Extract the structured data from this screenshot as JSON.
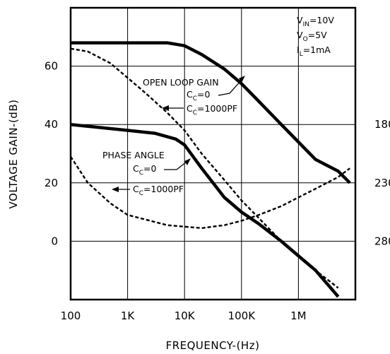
{
  "chart_data": {
    "type": "line",
    "title": "",
    "xlabel": "FREQUENCY-(Hz)",
    "ylabel": "VOLTAGE GAIN-(dB)",
    "x_scale": "log",
    "xlim": [
      100,
      10000000
    ],
    "ylim": [
      -20,
      80
    ],
    "x_tick_values": [
      100,
      1000,
      10000,
      100000,
      1000000
    ],
    "x_tick_labels": [
      "100",
      "1K",
      "10K",
      "100K",
      "1M"
    ],
    "y_tick_values": [
      0,
      20,
      40,
      60
    ],
    "y_tick_labels": [
      "0",
      "20",
      "40",
      "60"
    ],
    "right_axis_tick_values": [
      40,
      20,
      0
    ],
    "right_axis_tick_labels": [
      "180",
      "230",
      "280"
    ],
    "grid": true,
    "conditions": {
      "vin_prefix": "V",
      "vin_sub": "IN",
      "vin_rest": "=10V",
      "vo_prefix": "V",
      "vo_sub": "O",
      "vo_rest": "=5V",
      "il_prefix": "I",
      "il_sub": "L",
      "il_rest": "=1mA"
    },
    "annotations": {
      "open_loop_gain": "OPEN LOOP GAIN",
      "phase_angle": "PHASE ANGLE",
      "cc_prefix": "C",
      "cc_sub": "C",
      "cc_zero_rest": "=0",
      "cc_1000_rest": "=1000PF"
    },
    "series": [
      {
        "style": "solid-thick",
        "x": [
          100,
          1000,
          5000,
          10000,
          20000,
          50000,
          100000,
          200000,
          500000,
          1000000,
          2000000,
          5000000,
          8000000
        ],
        "y": [
          68,
          68,
          68,
          67,
          64,
          59,
          54,
          48,
          40,
          34,
          28,
          24,
          20
        ]
      },
      {
        "style": "dashed",
        "x": [
          100,
          200,
          500,
          1000,
          2000,
          5000,
          10000,
          20000,
          50000,
          100000,
          200000,
          500000,
          1000000,
          2000000,
          5000000
        ],
        "y": [
          66,
          65,
          61,
          56,
          51,
          44,
          38,
          30,
          21,
          14,
          8,
          0,
          -5,
          -10,
          -16
        ]
      },
      {
        "style": "solid-thick",
        "x": [
          100,
          1000,
          3000,
          7000,
          10000,
          20000,
          50000,
          100000,
          200000,
          500000,
          1000000,
          2000000,
          5000000
        ],
        "y": [
          40,
          38,
          37,
          35,
          33,
          25,
          15,
          10,
          6,
          0,
          -5,
          -10,
          -19
        ]
      },
      {
        "style": "dashed",
        "x": [
          100,
          200,
          500,
          1000,
          2000,
          5000,
          10000,
          20000,
          50000,
          100000,
          200000,
          500000,
          1000000,
          2000000,
          5000000,
          8000000
        ],
        "y": [
          29,
          20,
          13,
          9,
          7.5,
          5.5,
          5,
          4.5,
          5.5,
          7,
          9,
          12,
          15,
          18,
          22,
          25
        ]
      }
    ]
  }
}
